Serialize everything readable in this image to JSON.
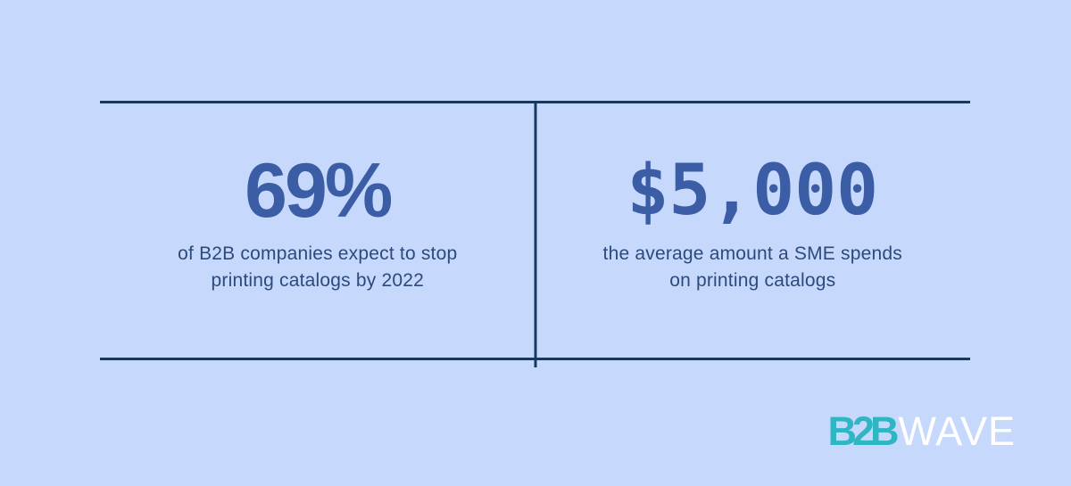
{
  "colors": {
    "background": "#c6d9fc",
    "rule_navy": "#153a5f",
    "stat_blue": "#3b5da6",
    "caption_navy": "#2c4a7c",
    "brand_teal": "#2fb6c3",
    "brand_white": "#ffffff"
  },
  "chart_data": {
    "type": "table",
    "title": "",
    "categories": [
      "of B2B companies expect to stop printing catalogs by 2022",
      "the average amount a SME spends on printing catalogs"
    ],
    "values": [
      "69%",
      "$5,000"
    ]
  },
  "stats": [
    {
      "value": "69%",
      "caption_lines": [
        "of B2B companies expect to stop",
        "printing catalogs by 2022"
      ]
    },
    {
      "value": "$5,000",
      "caption_lines": [
        "the average amount a SME spends",
        "on printing catalogs"
      ]
    }
  ],
  "logo": {
    "bold": "B2B",
    "light": "WAVE"
  }
}
